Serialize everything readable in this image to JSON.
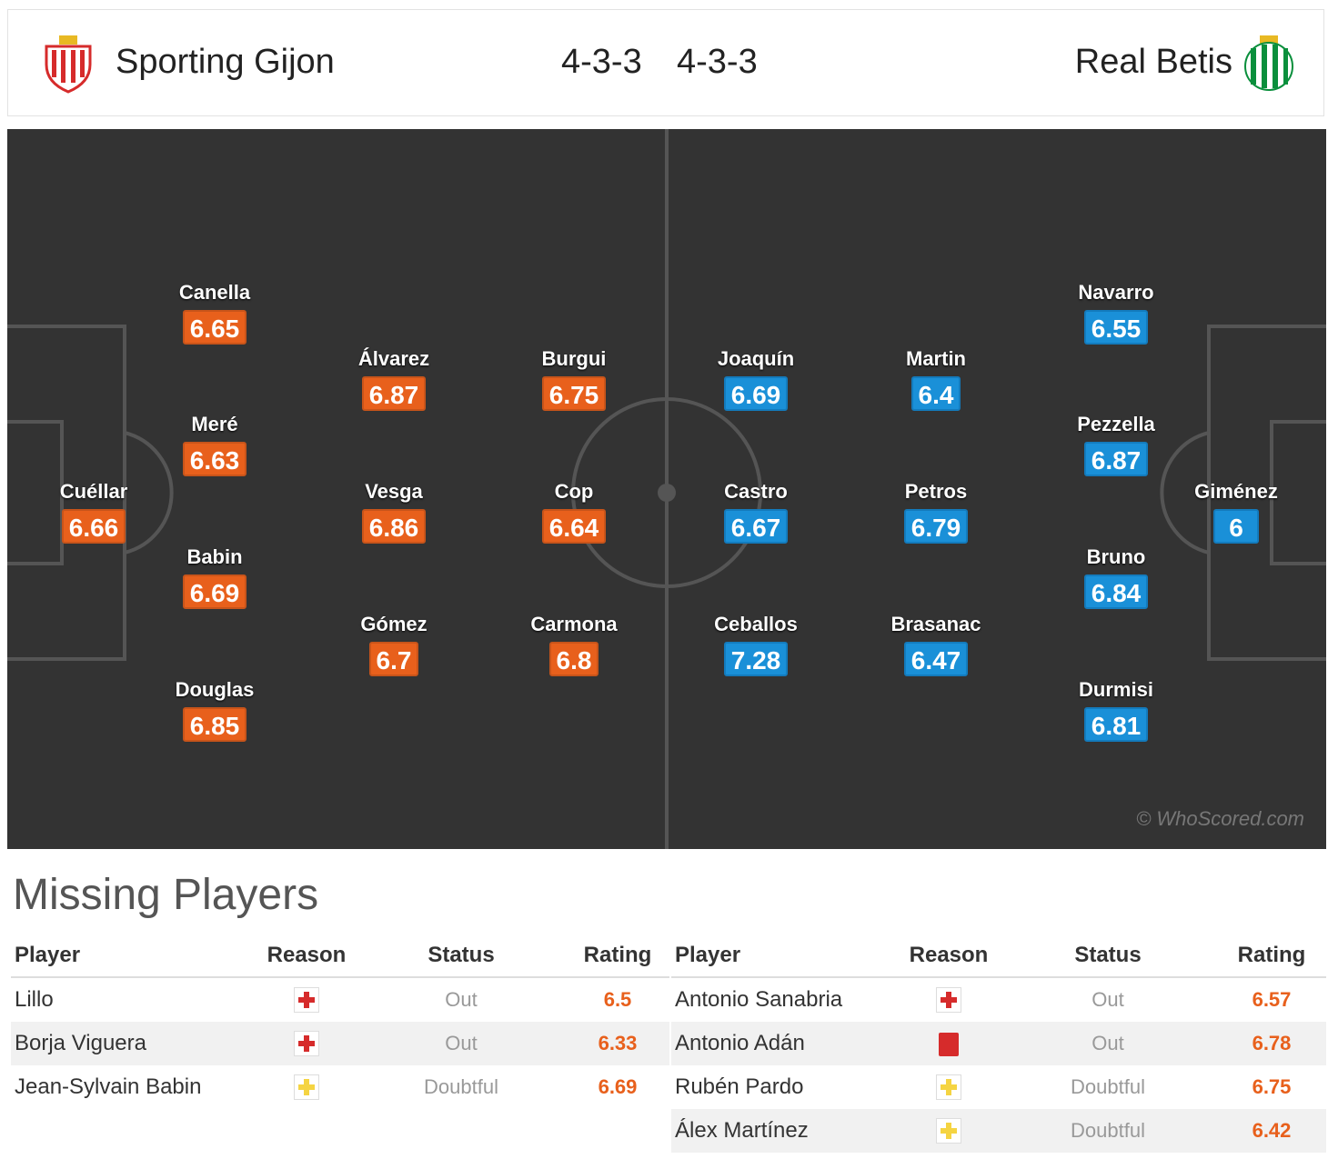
{
  "header": {
    "home_team": "Sporting Gijon",
    "home_formation": "4-3-3",
    "away_formation": "4-3-3",
    "away_team": "Real Betis"
  },
  "colors": {
    "home": "#e8601c",
    "away": "#1a90d8",
    "pitch": "#333333"
  },
  "pitch": {
    "watermark": "© WhoScored.com",
    "home_players": [
      {
        "name": "Cuéllar",
        "rating": "6.66"
      },
      {
        "name": "Canella",
        "rating": "6.65"
      },
      {
        "name": "Meré",
        "rating": "6.63"
      },
      {
        "name": "Babin",
        "rating": "6.69"
      },
      {
        "name": "Douglas",
        "rating": "6.85"
      },
      {
        "name": "Álvarez",
        "rating": "6.87"
      },
      {
        "name": "Vesga",
        "rating": "6.86"
      },
      {
        "name": "Gómez",
        "rating": "6.7"
      },
      {
        "name": "Burgui",
        "rating": "6.75"
      },
      {
        "name": "Cop",
        "rating": "6.64"
      },
      {
        "name": "Carmona",
        "rating": "6.8"
      }
    ],
    "away_players": [
      {
        "name": "Joaquín",
        "rating": "6.69"
      },
      {
        "name": "Castro",
        "rating": "6.67"
      },
      {
        "name": "Ceballos",
        "rating": "7.28"
      },
      {
        "name": "Martin",
        "rating": "6.4"
      },
      {
        "name": "Petros",
        "rating": "6.79"
      },
      {
        "name": "Brasanac",
        "rating": "6.47"
      },
      {
        "name": "Navarro",
        "rating": "6.55"
      },
      {
        "name": "Pezzella",
        "rating": "6.87"
      },
      {
        "name": "Bruno",
        "rating": "6.84"
      },
      {
        "name": "Durmisi",
        "rating": "6.81"
      },
      {
        "name": "Giménez",
        "rating": "6"
      }
    ]
  },
  "missing": {
    "title": "Missing Players",
    "headers": {
      "player": "Player",
      "reason": "Reason",
      "status": "Status",
      "rating": "Rating"
    },
    "home": [
      {
        "player": "Lillo",
        "reason": "injury-icon",
        "status": "Out",
        "rating": "6.5"
      },
      {
        "player": "Borja Viguera",
        "reason": "injury-icon",
        "status": "Out",
        "rating": "6.33"
      },
      {
        "player": "Jean-Sylvain Babin",
        "reason": "doubtful-icon",
        "status": "Doubtful",
        "rating": "6.69"
      }
    ],
    "away": [
      {
        "player": "Antonio Sanabria",
        "reason": "injury-icon",
        "status": "Out",
        "rating": "6.57"
      },
      {
        "player": "Antonio Adán",
        "reason": "red-card-icon",
        "status": "Out",
        "rating": "6.78"
      },
      {
        "player": "Rubén Pardo",
        "reason": "doubtful-icon",
        "status": "Doubtful",
        "rating": "6.75"
      },
      {
        "player": "Álex Martínez",
        "reason": "doubtful-icon",
        "status": "Doubtful",
        "rating": "6.42"
      }
    ]
  }
}
